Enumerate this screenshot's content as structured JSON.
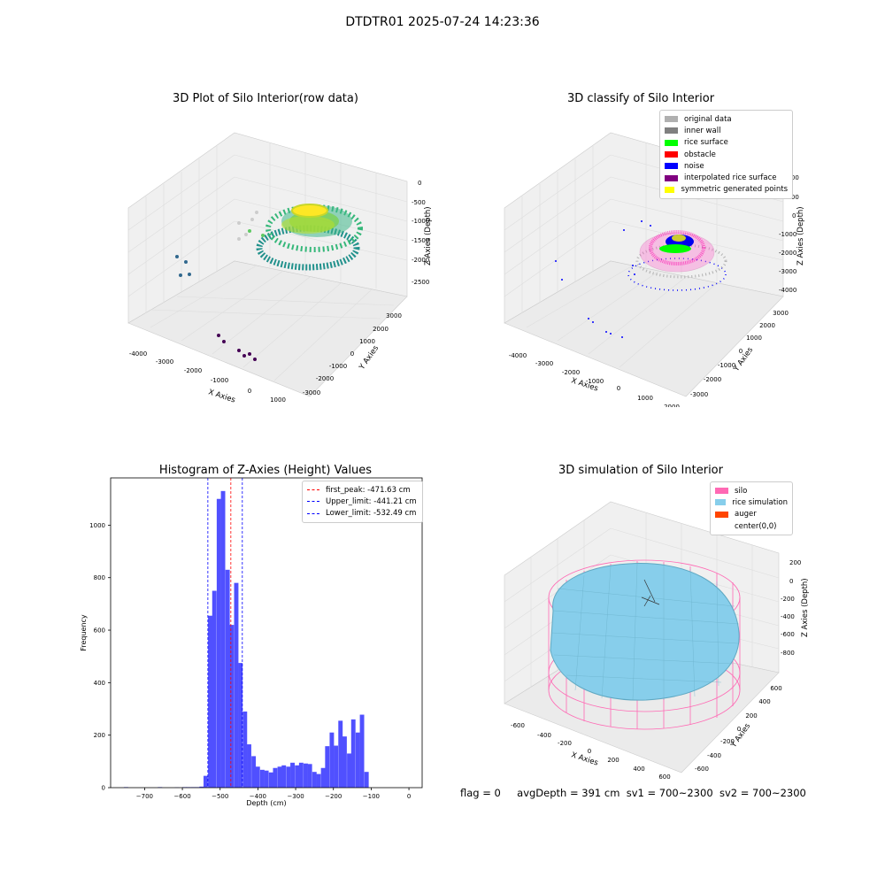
{
  "suptitle": "DTDTR01 2025-07-24 14:23:36",
  "footer": {
    "flag": "flag = 0",
    "avgDepth": "avgDepth = 391 cm",
    "sv1": "sv1 = 700~2300",
    "sv2": "sv2 = 700~2300"
  },
  "panels": {
    "raw": {
      "title": "3D Plot of Silo Interior(row data)",
      "xlabel": "X Axies",
      "ylabel": "Y Axies",
      "zlabel": "Z Axies (Depth)",
      "xticks": [
        "-4000",
        "-3000",
        "-2000",
        "-1000",
        "0",
        "1000"
      ],
      "yticks": [
        "3000",
        "2000",
        "1000",
        "0",
        "-1000",
        "-2000",
        "-3000"
      ],
      "zticks": [
        "0",
        "-500",
        "-1000",
        "-1500",
        "-2000",
        "-2500"
      ]
    },
    "classify": {
      "title": "3D classify of Silo Interior",
      "xlabel": "X Axies",
      "ylabel": "Y Axies",
      "zlabel": "Z Axies (Depth)",
      "xticks": [
        "-4000",
        "-3000",
        "-2000",
        "-1000",
        "0",
        "1000",
        "2000"
      ],
      "yticks": [
        "3000",
        "2000",
        "1000",
        "0",
        "-1000",
        "-2000",
        "-3000"
      ],
      "zticks": [
        "2000",
        "1000",
        "0",
        "-1000",
        "-2000",
        "-3000",
        "-4000"
      ],
      "legend": [
        {
          "label": "original data",
          "color": "#b0b0b0"
        },
        {
          "label": "inner wall",
          "color": "#808080"
        },
        {
          "label": "rice surface",
          "color": "#00ff00"
        },
        {
          "label": "obstacle",
          "color": "#ff0000"
        },
        {
          "label": "noise",
          "color": "#0000ff"
        },
        {
          "label": "interpolated rice surface",
          "color": "#800080"
        },
        {
          "label": "symmetric generated points",
          "color": "#ffff00"
        }
      ]
    },
    "histogram": {
      "title": "Histogram of Z-Axies (Height) Values",
      "xlabel": "Depth (cm)",
      "ylabel": "Frequency",
      "xticks": [
        "−700",
        "−600",
        "−500",
        "−400",
        "−300",
        "−200",
        "−100",
        "0"
      ],
      "yticks": [
        "0",
        "200",
        "400",
        "600",
        "800",
        "1000"
      ],
      "legend": [
        {
          "label": "first_peak: -471.63 cm",
          "color": "#ff0000"
        },
        {
          "label": "Upper_limit: -441.21 cm",
          "color": "#0000ff"
        },
        {
          "label": "Lower_limit: -532.49 cm",
          "color": "#0000ff"
        }
      ]
    },
    "simulation": {
      "title": "3D simulation of Silo Interior",
      "xlabel": "X Axies",
      "ylabel": "Y Axies",
      "zlabel": "Z Axies (Depth)",
      "xticks": [
        "-600",
        "-400",
        "-200",
        "0",
        "200",
        "400",
        "600"
      ],
      "yticks": [
        "600",
        "400",
        "200",
        "0",
        "-200",
        "-400",
        "-600"
      ],
      "zticks": [
        "200",
        "0",
        "-200",
        "-400",
        "-600",
        "-800"
      ],
      "legend": [
        {
          "label": "silo",
          "color": "#ff69b4"
        },
        {
          "label": "rice simulation",
          "color": "#87ceeb"
        },
        {
          "label": "auger",
          "color": "#ff4500"
        },
        {
          "label": "center(0,0)",
          "color": ""
        }
      ]
    }
  },
  "chart_data": {
    "type": "bar",
    "title": "Histogram of Z-Axies (Height) Values",
    "xlabel": "Depth (cm)",
    "ylabel": "Frequency",
    "xlim": [
      -790,
      35
    ],
    "ylim": [
      0,
      1180
    ],
    "bin_width": 11.5,
    "bins": [
      [
        -755,
        2
      ],
      [
        -665,
        2
      ],
      [
        -620,
        1
      ],
      [
        -600,
        2
      ],
      [
        -590,
        2
      ],
      [
        -578,
        2
      ],
      [
        -567,
        2
      ],
      [
        -555,
        4
      ],
      [
        -544,
        45
      ],
      [
        -532,
        655
      ],
      [
        -521,
        750
      ],
      [
        -509,
        1100
      ],
      [
        -498,
        1130
      ],
      [
        -486,
        830
      ],
      [
        -475,
        620
      ],
      [
        -463,
        780
      ],
      [
        -452,
        475
      ],
      [
        -440,
        290
      ],
      [
        -429,
        165
      ],
      [
        -417,
        120
      ],
      [
        -406,
        80
      ],
      [
        -394,
        68
      ],
      [
        -383,
        65
      ],
      [
        -371,
        58
      ],
      [
        -360,
        75
      ],
      [
        -348,
        80
      ],
      [
        -337,
        85
      ],
      [
        -325,
        80
      ],
      [
        -314,
        95
      ],
      [
        -302,
        85
      ],
      [
        -291,
        95
      ],
      [
        -279,
        92
      ],
      [
        -268,
        90
      ],
      [
        -256,
        60
      ],
      [
        -245,
        52
      ],
      [
        -233,
        75
      ],
      [
        -222,
        158
      ],
      [
        -210,
        210
      ],
      [
        -199,
        160
      ],
      [
        -187,
        255
      ],
      [
        -176,
        195
      ],
      [
        -164,
        130
      ],
      [
        -153,
        260
      ],
      [
        -141,
        210
      ],
      [
        -130,
        278
      ],
      [
        -118,
        60
      ]
    ],
    "vlines": [
      {
        "label": "first_peak: -471.63 cm",
        "x": -471.63,
        "color": "#ff0000"
      },
      {
        "label": "Upper_limit: -441.21 cm",
        "x": -441.21,
        "color": "#0000ff"
      },
      {
        "label": "Lower_limit: -532.49 cm",
        "x": -532.49,
        "color": "#0000ff"
      }
    ],
    "bar_color": "#5050ff"
  }
}
